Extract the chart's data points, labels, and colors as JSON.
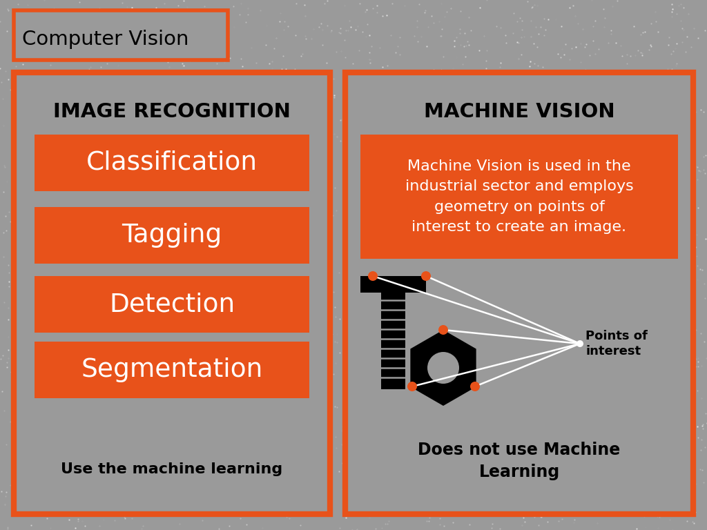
{
  "bg_color": "#9A9A9A",
  "orange": "#E8521A",
  "black": "#000000",
  "white": "#FFFFFF",
  "title": "Computer Vision",
  "left_title": "IMAGE RECOGNITION",
  "left_items": [
    "Classification",
    "Tagging",
    "Detection",
    "Segmentation"
  ],
  "left_footer": "Use the machine learning",
  "right_title": "MACHINE VISION",
  "right_desc": "Machine Vision is used in the\nindustrial sector and employs\ngeometry on points of\ninterest to create an image.",
  "right_footer": "Does not use Machine\nLearning",
  "points_label": "Points of\ninterest"
}
